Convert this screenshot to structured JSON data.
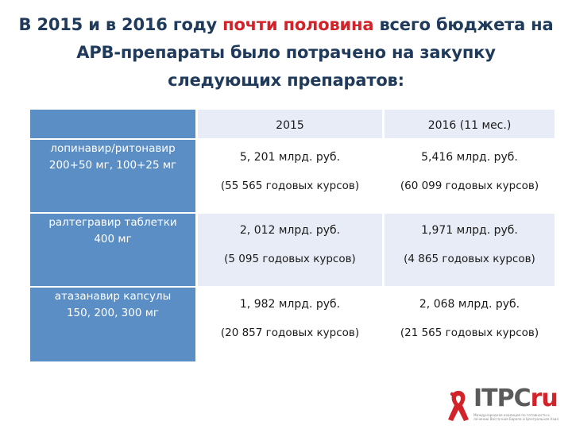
{
  "title": {
    "line1_a": "В 2015 и в 2016 году ",
    "line1_highlight": "почти половина",
    "line1_b": " всего бюджета на",
    "line2": "АРВ-препараты было потрачено на закупку",
    "line3": "следующих препаратов:"
  },
  "table": {
    "columns": [
      "",
      "2015",
      "2016 (11 мес.)"
    ],
    "rows": [
      {
        "drug_line1": "лопинавир/ритонавир",
        "drug_line2": "200+50 мг, 100+25 мг",
        "y2015_amount": "5, 201 млрд. руб.",
        "y2015_courses": "(55 565 годовых курсов)",
        "y2016_amount": "5,416 млрд. руб.",
        "y2016_courses": "(60 099 годовых курсов)"
      },
      {
        "drug_line1": "ралтегравир таблетки",
        "drug_line2": "400 мг",
        "y2015_amount": "2, 012 млрд. руб.",
        "y2015_courses": "(5 095 годовых курсов)",
        "y2016_amount": "1,971 млрд. руб.",
        "y2016_courses": "(4 865 годовых курсов)"
      },
      {
        "drug_line1": "атазанавир капсулы",
        "drug_line2": "150, 200, 300 мг",
        "y2015_amount": "1, 982 млрд. руб.",
        "y2015_courses": "(20 857 годовых курсов)",
        "y2016_amount": "2, 068  млрд. руб.",
        "y2016_courses": "(21 565 годовых курсов)"
      }
    ]
  },
  "logo": {
    "name_a": "ITPC",
    "name_b": "ru",
    "tagline": "Международная коалиция по готовности к лечению Восточная Европа и Центральная Азия"
  },
  "colors": {
    "title": "#1f3a5a",
    "highlight": "#d2232a",
    "rowhead_bg": "#5a8ec4",
    "body_bg": "#e7ecf6"
  }
}
